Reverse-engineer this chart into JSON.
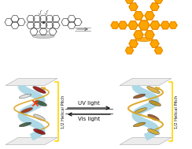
{
  "bg_color": "#ffffff",
  "mol_color": "#444444",
  "orange_color": "#FFA500",
  "orange_dark": "#E08000",
  "arrow_color": "#666666",
  "ribbon_color": "#ADD8E6",
  "plate_color": "#E8E8E8",
  "plate_edge": "#cccccc",
  "bracket_color": "#FFD700",
  "label_helical": "1/2 Helical Pitch",
  "label_uv": "UV light",
  "label_vis": "Vis light",
  "label_fontsize": 5.0,
  "arrow_eq_color": "#111111",
  "disk_gray": "#aaaaaa",
  "disk_orange": "#FFA500",
  "rod_colors_left": [
    "#8B0000",
    "#e0e0e0",
    "#2F4F2F",
    "#cc3300",
    "#e0e0e0",
    "#555555"
  ],
  "rod_colors_right": [
    "#B8860B",
    "#8B4513",
    "#DAA520",
    "#B8860B",
    "#8B4513"
  ],
  "x_color": "#FF3300",
  "spiral_color_left": "#DAA520",
  "spiral_color_right": "#DAA520"
}
